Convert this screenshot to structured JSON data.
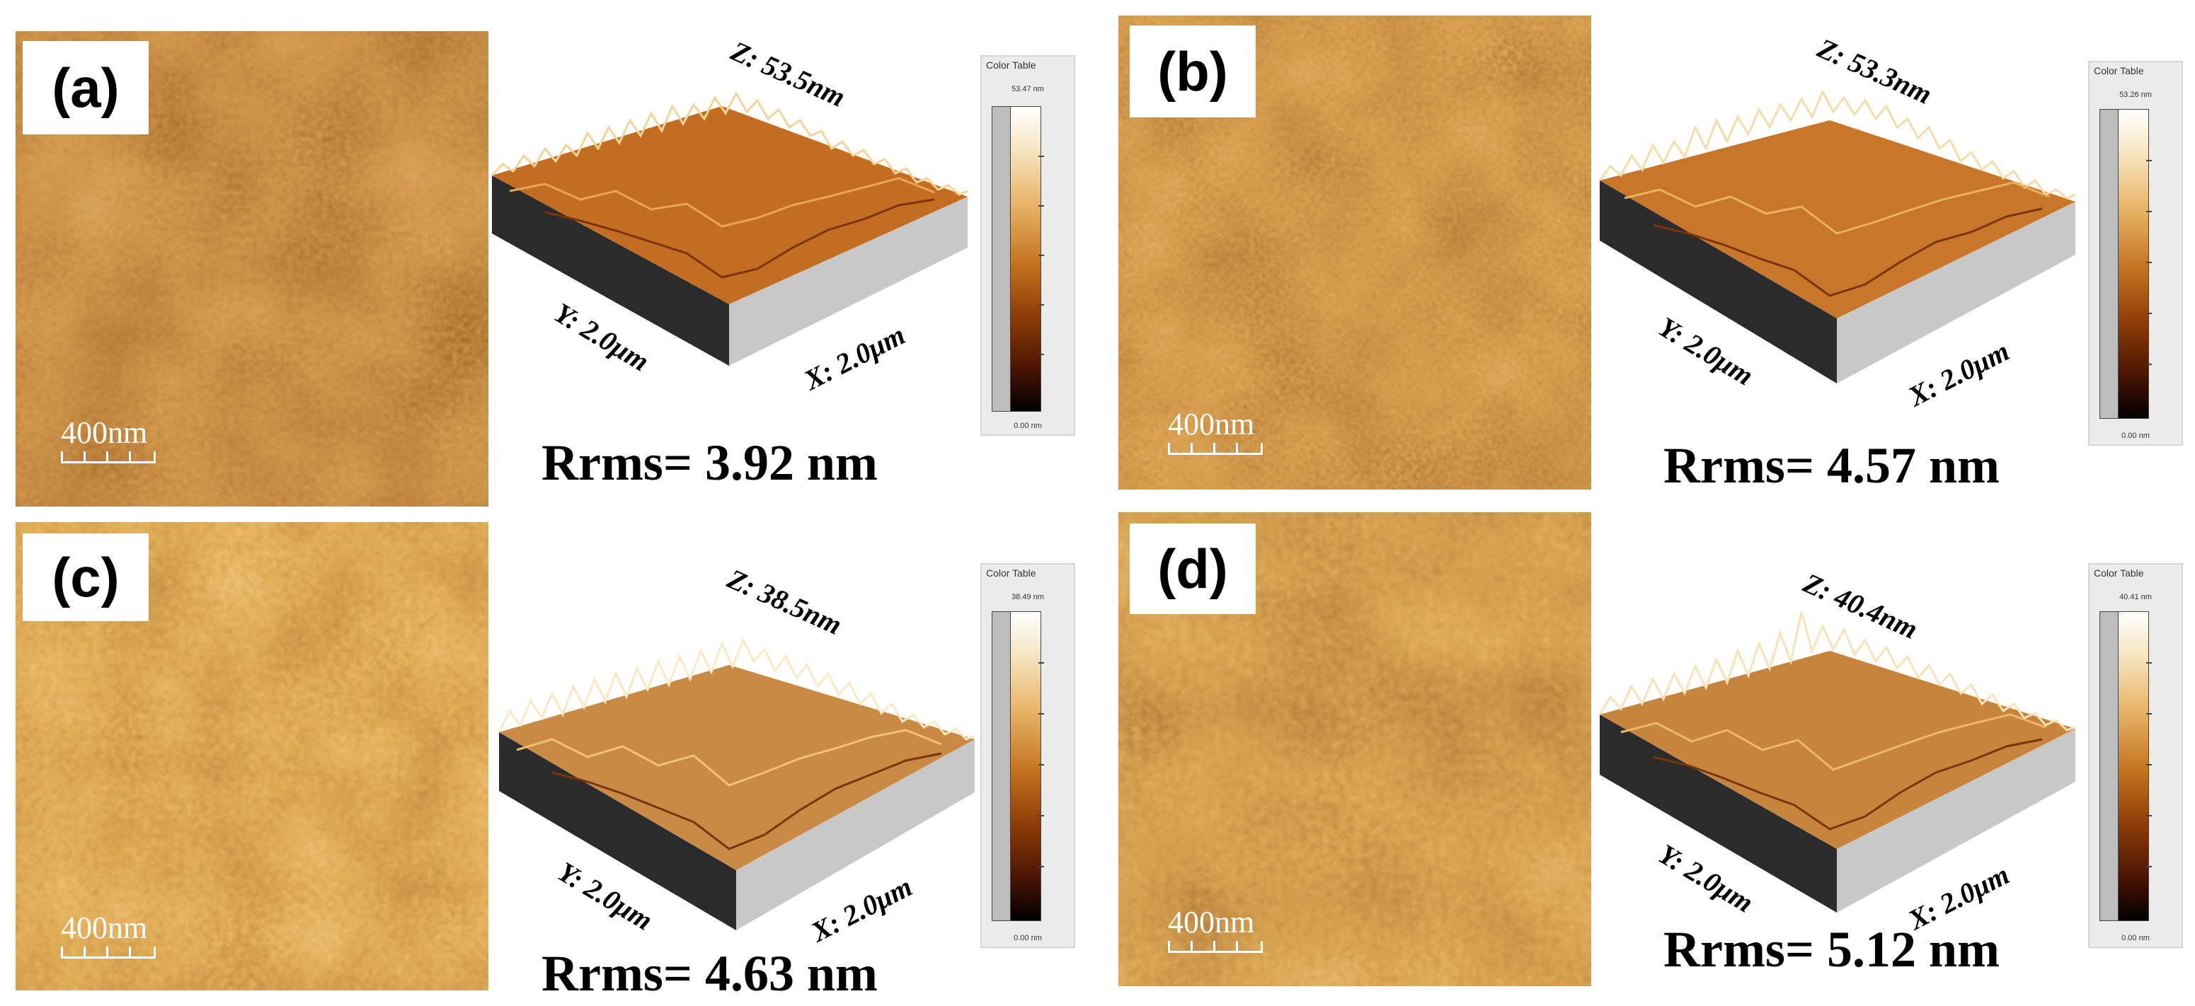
{
  "panels": [
    {
      "letter": "(a)",
      "scale_label": "400nm",
      "z_label": "Z: 53.5nm",
      "x_label": "X: 2.0μm",
      "y_label": "Y: 2.0μm",
      "rrms": "Rrms= 3.92 nm",
      "color_table": {
        "title": "Color Table",
        "max": "53.47 nm",
        "min": "0.00 nm"
      }
    },
    {
      "letter": "(b)",
      "scale_label": "400nm",
      "z_label": "Z: 53.3nm",
      "x_label": "X: 2.0μm",
      "y_label": "Y: 2.0μm",
      "rrms": "Rrms= 4.57 nm",
      "color_table": {
        "title": "Color Table",
        "max": "53.26 nm",
        "min": "0.00 nm"
      }
    },
    {
      "letter": "(c)",
      "scale_label": "400nm",
      "z_label": "Z: 38.5nm",
      "x_label": "X: 2.0μm",
      "y_label": "Y: 2.0μm",
      "rrms": "Rrms= 4.63 nm",
      "color_table": {
        "title": "Color Table",
        "max": "38.49 nm",
        "min": "0.00 nm"
      }
    },
    {
      "letter": "(d)",
      "scale_label": "400nm",
      "z_label": "Z: 40.4nm",
      "x_label": "X: 2.0μm",
      "y_label": "Y: 2.0μm",
      "rrms": "Rrms= 5.12 nm",
      "color_table": {
        "title": "Color Table",
        "max": "40.41 nm",
        "min": "0.00 nm"
      }
    }
  ],
  "colors": {
    "afm_dark": "#6a2a05",
    "afm_mid": "#c66a1e",
    "afm_light": "#f2c27a",
    "surface_side": "#2b2b2b",
    "surface_floor": "#c8c8c8"
  }
}
